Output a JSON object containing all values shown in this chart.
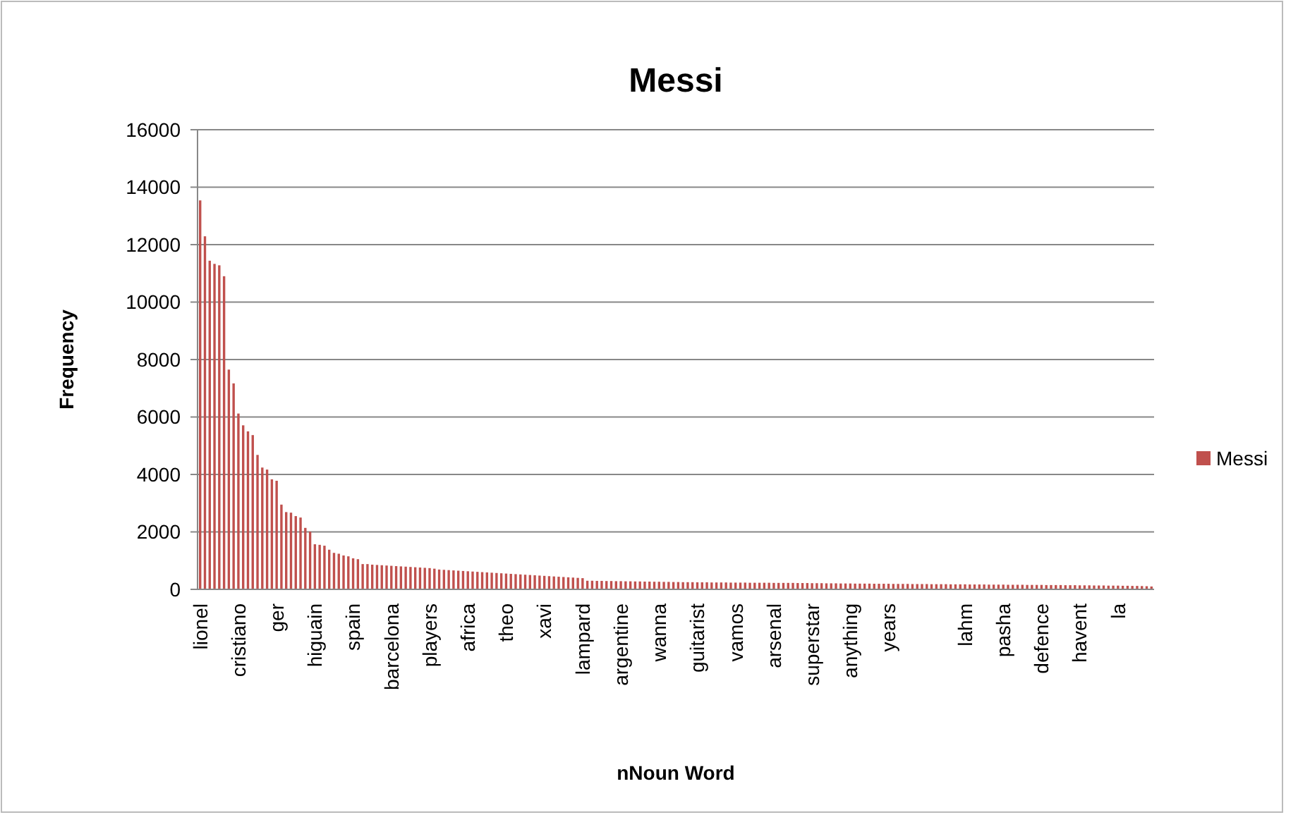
{
  "chart_data": {
    "type": "bar",
    "title": "Messi",
    "xlabel": "nNoun Word",
    "ylabel": "Frequency",
    "categories": [
      "lionel",
      null,
      null,
      null,
      null,
      null,
      null,
      null,
      "cristiano",
      null,
      null,
      null,
      null,
      null,
      null,
      null,
      "ger",
      null,
      null,
      null,
      null,
      null,
      null,
      null,
      "higuain",
      null,
      null,
      null,
      null,
      null,
      null,
      null,
      "spain",
      null,
      null,
      null,
      null,
      null,
      null,
      null,
      "barcelona",
      null,
      null,
      null,
      null,
      null,
      null,
      null,
      "players",
      null,
      null,
      null,
      null,
      null,
      null,
      null,
      "africa",
      null,
      null,
      null,
      null,
      null,
      null,
      null,
      "theo",
      null,
      null,
      null,
      null,
      null,
      null,
      null,
      "xavi",
      null,
      null,
      null,
      null,
      null,
      null,
      null,
      "lampard",
      null,
      null,
      null,
      null,
      null,
      null,
      null,
      "argentine",
      null,
      null,
      null,
      null,
      null,
      null,
      null,
      "wanna",
      null,
      null,
      null,
      null,
      null,
      null,
      null,
      "guitarist",
      null,
      null,
      null,
      null,
      null,
      null,
      null,
      "vamos",
      null,
      null,
      null,
      null,
      null,
      null,
      null,
      "arsenal",
      null,
      null,
      null,
      null,
      null,
      null,
      null,
      "superstar",
      null,
      null,
      null,
      null,
      null,
      null,
      null,
      "anything",
      null,
      null,
      null,
      null,
      null,
      null,
      null,
      "years",
      null,
      null,
      null,
      null,
      null,
      null,
      null,
      null,
      null,
      null,
      null,
      null,
      null,
      null,
      null,
      "lahm",
      null,
      null,
      null,
      null,
      null,
      null,
      null,
      "pasha",
      null,
      null,
      null,
      null,
      null,
      null,
      null,
      "defence",
      null,
      null,
      null,
      null,
      null,
      null,
      null,
      "havent",
      null,
      null,
      null,
      null,
      null,
      null,
      null,
      "la",
      null,
      null,
      null,
      null,
      null,
      null,
      null
    ],
    "series": [
      {
        "name": "Messi",
        "color": "#c0504d",
        "values": [
          13540,
          12290,
          11440,
          11330,
          11280,
          10900,
          7650,
          7170,
          6120,
          5710,
          5500,
          5370,
          4680,
          4240,
          4170,
          3830,
          3780,
          2950,
          2690,
          2670,
          2550,
          2500,
          2140,
          2010,
          1570,
          1550,
          1520,
          1380,
          1270,
          1240,
          1180,
          1150,
          1080,
          1050,
          880,
          880,
          860,
          850,
          840,
          830,
          820,
          810,
          800,
          790,
          780,
          770,
          760,
          750,
          740,
          720,
          690,
          680,
          670,
          660,
          650,
          640,
          630,
          620,
          610,
          600,
          590,
          580,
          570,
          560,
          550,
          540,
          530,
          520,
          510,
          500,
          490,
          480,
          470,
          460,
          450,
          440,
          430,
          420,
          410,
          400,
          390,
          300,
          300,
          295,
          295,
          290,
          290,
          285,
          285,
          280,
          280,
          275,
          275,
          270,
          270,
          265,
          265,
          260,
          260,
          255,
          255,
          250,
          250,
          250,
          245,
          245,
          245,
          240,
          240,
          240,
          240,
          235,
          235,
          235,
          235,
          230,
          230,
          230,
          230,
          230,
          225,
          225,
          225,
          225,
          225,
          220,
          220,
          220,
          215,
          215,
          215,
          210,
          210,
          210,
          205,
          205,
          205,
          200,
          200,
          200,
          200,
          195,
          195,
          195,
          195,
          190,
          190,
          190,
          190,
          185,
          185,
          185,
          185,
          180,
          180,
          180,
          180,
          175,
          175,
          175,
          175,
          170,
          170,
          170,
          170,
          165,
          165,
          165,
          165,
          160,
          160,
          160,
          160,
          155,
          155,
          155,
          155,
          150,
          150,
          150,
          150,
          145,
          145,
          145,
          140,
          140,
          140,
          135,
          135,
          135,
          130,
          130,
          130,
          125,
          125,
          120,
          120,
          115,
          110,
          100
        ]
      }
    ],
    "ylim": [
      0,
      16000
    ],
    "yticks": [
      0,
      2000,
      4000,
      6000,
      8000,
      10000,
      12000,
      14000,
      16000
    ],
    "grid": "y",
    "legend": "right"
  }
}
